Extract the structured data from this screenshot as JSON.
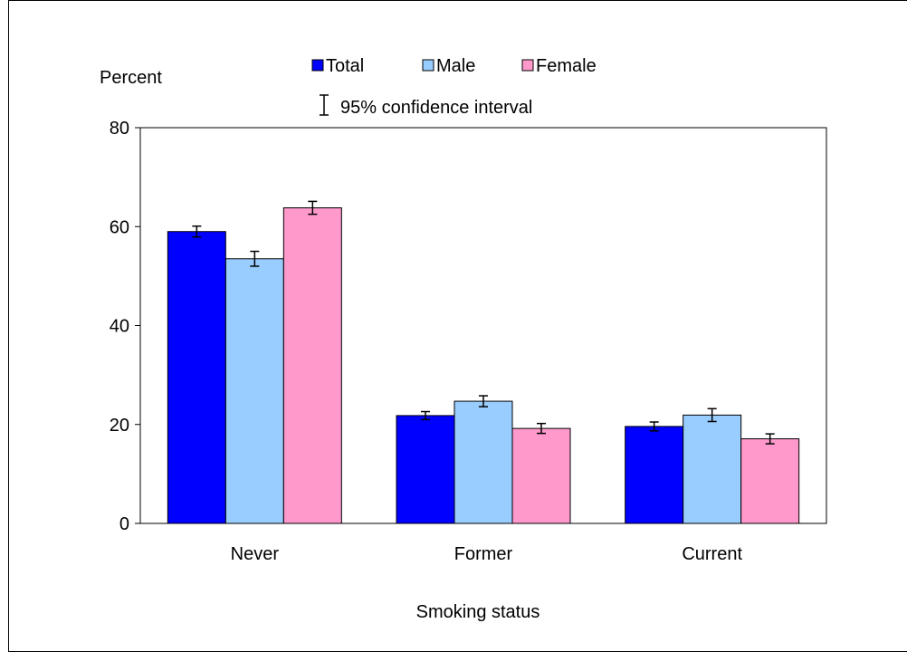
{
  "chart_data": {
    "type": "bar",
    "ylabel": "Percent",
    "xlabel": "Smoking status",
    "ylim": [
      0,
      80
    ],
    "yticks": [
      0,
      20,
      40,
      60,
      80
    ],
    "categories": [
      "Never",
      "Former",
      "Current"
    ],
    "series": [
      {
        "name": "Total",
        "color": "#0000ff",
        "values": [
          59.0,
          21.8,
          19.6
        ],
        "ci_low": [
          57.9,
          21.0,
          18.7
        ],
        "ci_high": [
          60.1,
          22.6,
          20.5
        ]
      },
      {
        "name": "Male",
        "color": "#99ccff",
        "values": [
          53.5,
          24.7,
          21.9
        ],
        "ci_low": [
          52.0,
          23.6,
          20.6
        ],
        "ci_high": [
          55.0,
          25.8,
          23.2
        ]
      },
      {
        "name": "Female",
        "color": "#ff99cc",
        "values": [
          63.8,
          19.2,
          17.1
        ],
        "ci_low": [
          62.5,
          18.2,
          16.1
        ],
        "ci_high": [
          65.1,
          20.2,
          18.1
        ]
      }
    ],
    "ci_legend_label": "95% confidence interval",
    "legend_position": "top-center",
    "grid": false
  }
}
